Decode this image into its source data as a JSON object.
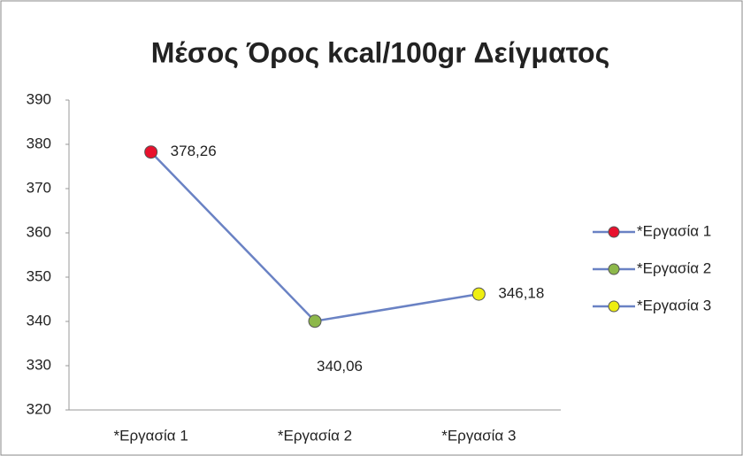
{
  "chart_data": {
    "type": "line",
    "title": "Μέσος Όρος kcal/100gr Δείγματος",
    "categories": [
      "*Εργασία 1",
      "*Εργασία 2",
      "*Εργασία 3"
    ],
    "values": [
      378.26,
      340.06,
      346.18
    ],
    "value_labels": [
      "378,26",
      "340,06",
      "346,18"
    ],
    "line_color": "#6a82c4",
    "point_colors": [
      "#e8112d",
      "#8db84a",
      "#eeee11"
    ],
    "ylim": [
      320,
      390
    ],
    "yticks": [
      320,
      330,
      340,
      350,
      360,
      370,
      380,
      390
    ],
    "grid": false,
    "legend": "right"
  }
}
